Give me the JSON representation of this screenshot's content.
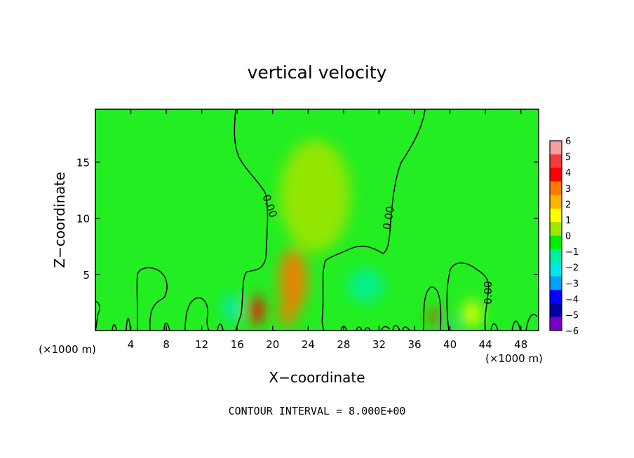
{
  "chart_data": {
    "type": "heatmap",
    "title": "vertical velocity",
    "xlabel": "X−coordinate",
    "ylabel": "Z−coordinate",
    "x_unit": "(×1000 m)",
    "x_unit_right": "(×1000 m)",
    "footer": "CONTOUR INTERVAL = 8.000E+00",
    "xlim": [
      0,
      50
    ],
    "ylim": [
      0,
      19.7
    ],
    "x_ticks": [
      4,
      8,
      12,
      16,
      20,
      24,
      28,
      32,
      36,
      40,
      44,
      48
    ],
    "x_tick_labels": [
      "4",
      "8",
      "12",
      "16",
      "20",
      "24",
      "28",
      "32",
      "36",
      "40",
      "44",
      "48"
    ],
    "y_ticks": [
      5,
      10,
      15
    ],
    "y_tick_labels": [
      "5",
      "10",
      "15"
    ],
    "contour_label": "0.00",
    "colorbar": {
      "levels": [
        6,
        5,
        4,
        3,
        2,
        1,
        0,
        -1,
        -2,
        -3,
        -4,
        -5,
        -6
      ],
      "labels": [
        "6",
        "5",
        "4",
        "3",
        "2",
        "1",
        "0",
        "−1",
        "−2",
        "−3",
        "−4",
        "−5",
        "−6"
      ],
      "colors": [
        "#f4a0a0",
        "#f03c3c",
        "#ff0000",
        "#ff7800",
        "#ffb400",
        "#ffff00",
        "#a0e600",
        "#00f000",
        "#00f0a0",
        "#00e6e6",
        "#00a0ff",
        "#0000ff",
        "#0000a0",
        "#7800c8"
      ]
    },
    "background_value_color": "#22ee22",
    "features": [
      {
        "x": 18.2,
        "z": 1.8,
        "value": 4.5,
        "rx": 0.9,
        "rz": 1.3
      },
      {
        "x": 22.3,
        "z": 4.5,
        "value": 3.5,
        "rx": 1.6,
        "rz": 2.8
      },
      {
        "x": 21.7,
        "z": 1.5,
        "value": 3.0,
        "rx": 1.0,
        "rz": 1.1
      },
      {
        "x": 38.3,
        "z": 1.2,
        "value": 4.0,
        "rx": 0.5,
        "rz": 0.8
      },
      {
        "x": 42.5,
        "z": 1.5,
        "value": 1.5,
        "rx": 1.0,
        "rz": 1.2
      },
      {
        "x": 15.4,
        "z": 2.0,
        "value": -2.5,
        "rx": 0.8,
        "rz": 1.2
      },
      {
        "x": 30.5,
        "z": 4.0,
        "value": -1.5,
        "rx": 2.0,
        "rz": 1.4
      },
      {
        "x": 40.2,
        "z": 0.5,
        "value": -3.5,
        "rx": 0.4,
        "rz": 0.5
      },
      {
        "x": 24.8,
        "z": 12.0,
        "value": 0.5,
        "rx": 4.0,
        "rz": 5.0
      }
    ]
  }
}
